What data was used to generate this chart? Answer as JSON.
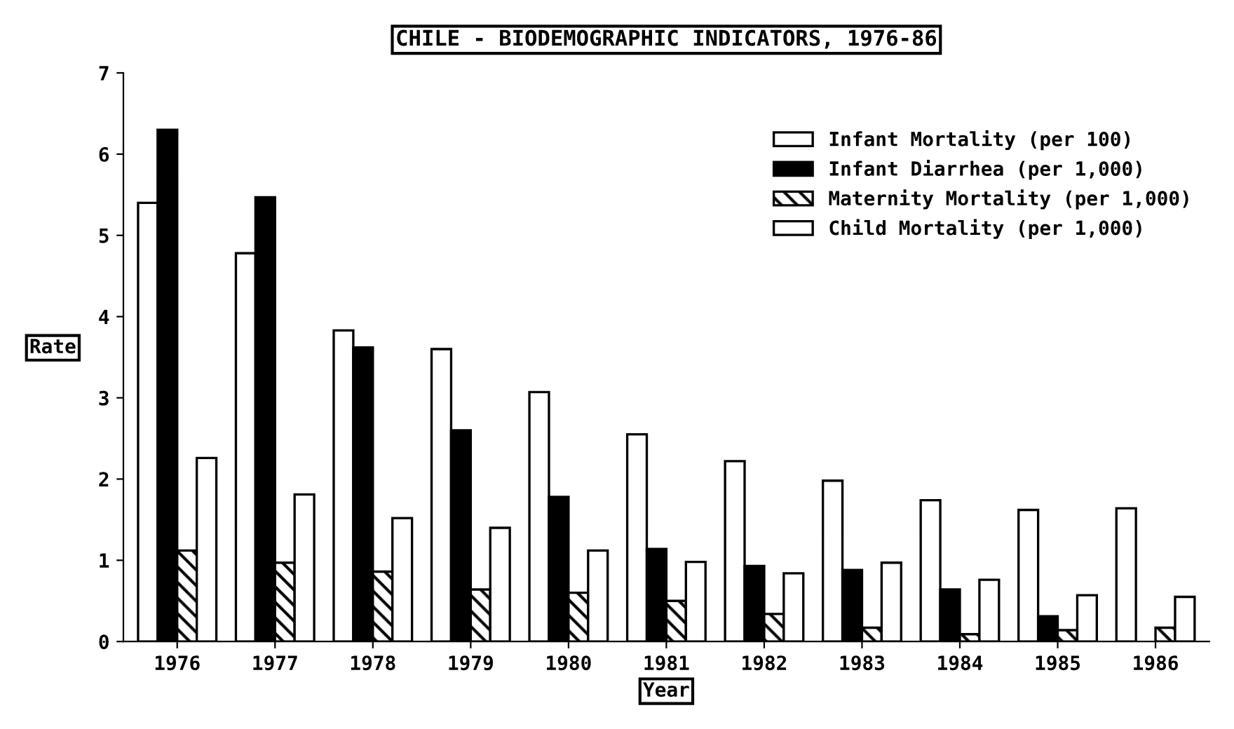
{
  "chart_data": {
    "type": "bar",
    "title": "CHILE - BIODEMOGRAPHIC INDICATORS, 1976-86",
    "xlabel": "Year",
    "ylabel": "Rate",
    "categories": [
      "1976",
      "1977",
      "1978",
      "1979",
      "1980",
      "1981",
      "1982",
      "1983",
      "1984",
      "1985",
      "1986"
    ],
    "series": [
      {
        "name": "Infant Mortality (per 100)",
        "color": "#ffffff",
        "values": [
          5.4,
          4.78,
          3.83,
          3.6,
          3.07,
          2.55,
          2.22,
          1.98,
          1.74,
          1.62,
          1.64
        ]
      },
      {
        "name": "Infant Diarrhea (per 1,000)",
        "color": "#000000",
        "values": [
          6.3,
          5.47,
          3.62,
          2.6,
          1.78,
          1.14,
          0.93,
          0.88,
          0.64,
          0.31,
          null
        ]
      },
      {
        "name": "Maternity Mortality (per 1,000)",
        "color": "#000000",
        "values": [
          1.12,
          0.97,
          0.86,
          0.64,
          0.6,
          0.5,
          0.34,
          0.17,
          0.09,
          0.14,
          0.17
        ]
      },
      {
        "name": "Child Mortality (per 1,000)",
        "color": "#ffffff",
        "values": [
          2.26,
          1.81,
          1.52,
          1.4,
          1.12,
          0.98,
          0.84,
          0.97,
          0.76,
          0.57,
          0.55
        ]
      }
    ],
    "ylim": [
      0,
      7
    ],
    "yticks": [
      0,
      1,
      2,
      3,
      4,
      5,
      6,
      7
    ],
    "grid": false,
    "legend": "top right"
  }
}
